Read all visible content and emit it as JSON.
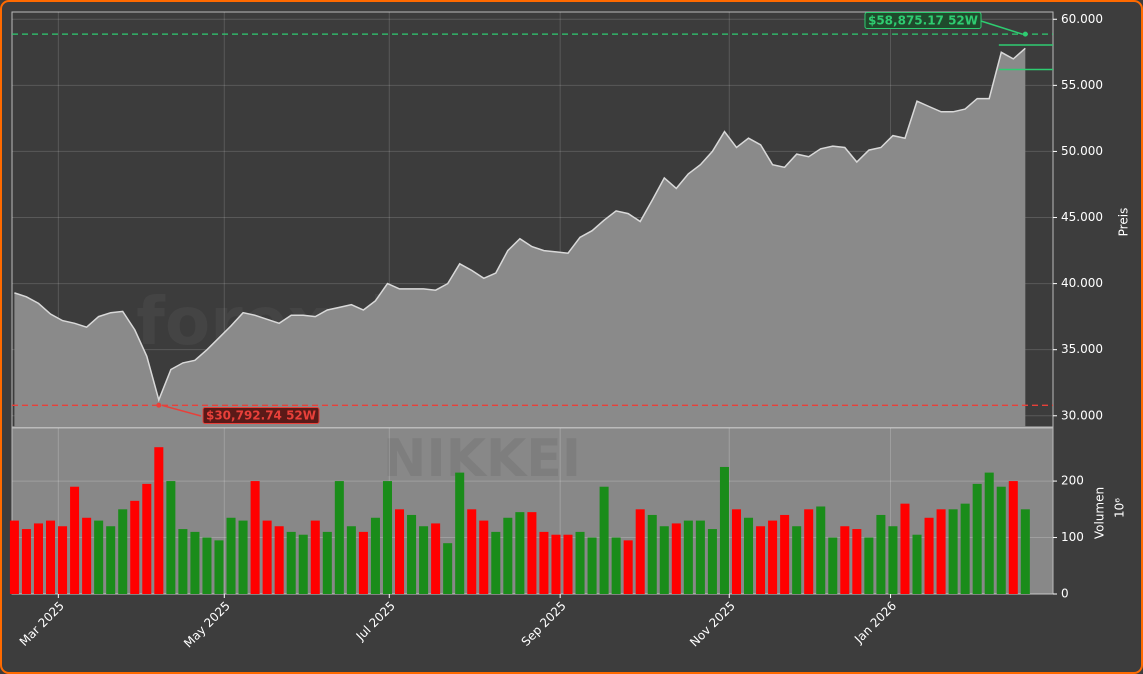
{
  "chart_data": {
    "type": "area",
    "watermark": "forexsignale.trade",
    "symbol_watermark": "NIKKEI",
    "ylabel": "Preis",
    "color": "#8a8a8a",
    "line_color": "#d9d9d9",
    "grid": true,
    "xlim": [
      -0.2,
      86.3
    ],
    "xticks": [
      {
        "value": 3.65,
        "label": "Mar 2025"
      },
      {
        "value": 17.44,
        "label": "May 2025"
      },
      {
        "value": 31.15,
        "label": "Jul 2025"
      },
      {
        "value": 45.35,
        "label": "Sep 2025"
      },
      {
        "value": 59.4,
        "label": "Nov 2025"
      },
      {
        "value": 72.8,
        "label": "Jan 2026"
      }
    ],
    "ylim": [
      29150,
      60550
    ],
    "yticks": [
      {
        "value": 30000,
        "label": "30.000"
      },
      {
        "value": 35000,
        "label": "35.000"
      },
      {
        "value": 40000,
        "label": "40.000"
      },
      {
        "value": 45000,
        "label": "45.000"
      },
      {
        "value": 50000,
        "label": "50.000"
      },
      {
        "value": 55000,
        "label": "55.000"
      },
      {
        "value": 60000,
        "label": "60.000"
      }
    ],
    "values": [
      39300,
      39000,
      38500,
      37700,
      37200,
      37000,
      36700,
      37500,
      37800,
      37900,
      36500,
      34500,
      31200,
      33500,
      34000,
      34200,
      35000,
      35900,
      36800,
      37800,
      37600,
      37300,
      37000,
      37600,
      37600,
      37500,
      38000,
      38200,
      38400,
      38000,
      38700,
      40000,
      39600,
      39600,
      39600,
      39500,
      40000,
      41500,
      41000,
      40400,
      40800,
      42500,
      43400,
      42800,
      42500,
      42400,
      42300,
      43500,
      44000,
      44800,
      45500,
      45300,
      44700,
      46300,
      48000,
      47200,
      48300,
      49000,
      50000,
      51500,
      50300,
      51000,
      50500,
      49000,
      48800,
      49800,
      49600,
      50200,
      50400,
      50300,
      49200,
      50100,
      50300,
      51200,
      51000,
      53800,
      53400,
      53000,
      53000,
      53200,
      54000,
      54000,
      57500,
      57000,
      57800
    ],
    "high": {
      "value": 58875.17,
      "label": "$58,875.17 52W",
      "index": 84,
      "color": "#2ecc71"
    },
    "low": {
      "value": 30792.74,
      "label": "$30,792.74 52W",
      "index": 12,
      "color": "#e8403a"
    },
    "levels": [
      58050,
      56200
    ],
    "level_color": "#2ecc71",
    "volume": {
      "ylabel": "Volumen",
      "multiplier": "10⁶",
      "ylim": [
        0,
        294
      ],
      "yticks": [
        0,
        100,
        200
      ],
      "up_color": "#1a8c1a",
      "down_color": "#ff0000",
      "values": [
        130,
        115,
        125,
        130,
        120,
        190,
        135,
        130,
        120,
        150,
        165,
        195,
        260,
        200,
        115,
        110,
        100,
        95,
        135,
        130,
        200,
        130,
        120,
        110,
        105,
        130,
        110,
        200,
        120,
        110,
        135,
        200,
        150,
        140,
        120,
        125,
        90,
        215,
        150,
        130,
        110,
        135,
        145,
        145,
        110,
        105,
        105,
        110,
        100,
        190,
        100,
        95,
        150,
        140,
        120,
        125,
        130,
        130,
        115,
        225,
        150,
        135,
        120,
        130,
        140,
        120,
        150,
        155,
        100,
        120,
        115,
        100,
        140,
        120,
        160,
        105,
        135,
        150,
        150,
        160,
        195,
        215,
        190,
        200,
        150
      ]
    }
  }
}
